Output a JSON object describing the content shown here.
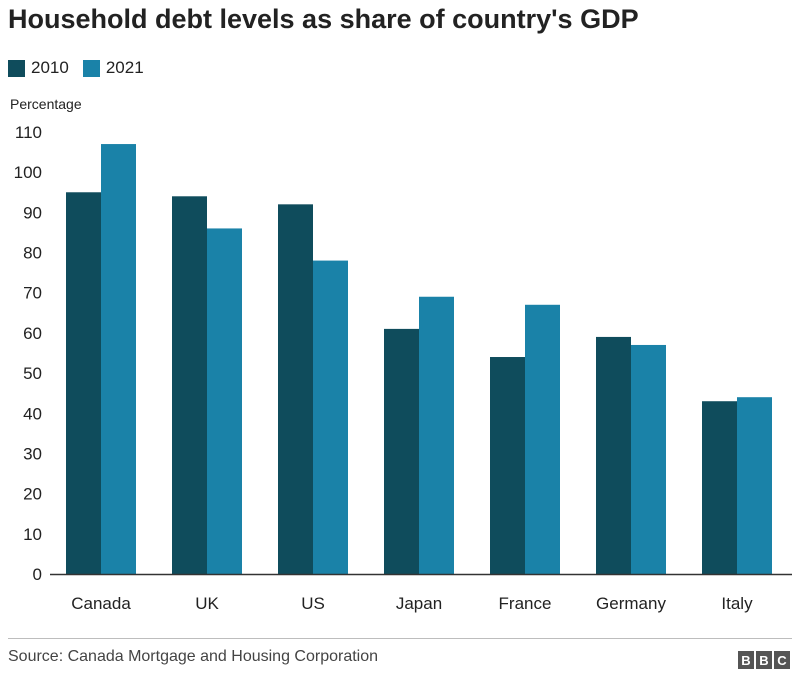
{
  "chart_data": {
    "type": "bar",
    "title": "Household debt levels as share of country's GDP",
    "ylabel": "Percentage",
    "categories": [
      "Canada",
      "UK",
      "US",
      "Japan",
      "France",
      "Germany",
      "Italy"
    ],
    "series": [
      {
        "name": "2010",
        "color": "#0f4c5c",
        "values": [
          95,
          94,
          92,
          61,
          54,
          59,
          43
        ]
      },
      {
        "name": "2021",
        "color": "#1a82a8",
        "values": [
          107,
          86,
          78,
          69,
          67,
          57,
          44
        ]
      }
    ],
    "ylim": [
      0,
      110
    ],
    "yticks": [
      "0",
      "10",
      "20",
      "30",
      "40",
      "50",
      "60",
      "70",
      "80",
      "90",
      "100",
      "110"
    ],
    "grid": false,
    "legend_position": "top-left",
    "source": "Source: Canada Mortgage and Housing Corporation"
  },
  "logo": {
    "letters": [
      "B",
      "B",
      "C"
    ]
  }
}
